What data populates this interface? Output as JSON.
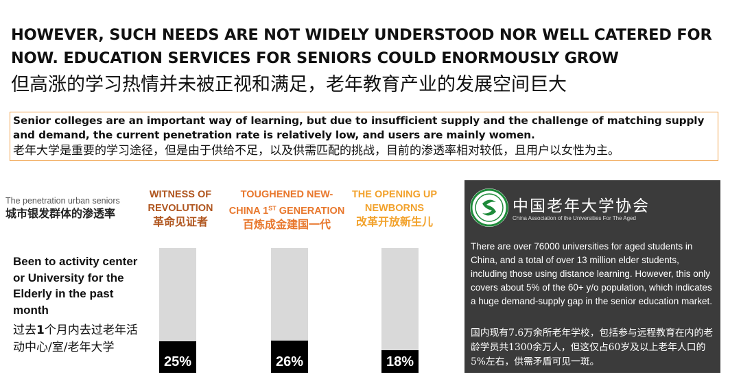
{
  "headline": {
    "en": "HOWEVER, SUCH NEEDS ARE NOT WIDELY UNDERSTOOD NOR WELL CATERED FOR NOW. EDUCATION SERVICES FOR SENIORS COULD ENORMOUSLY GROW",
    "zh": "但高涨的学习热情并未被正视和满足，老年教育产业的发展空间巨大"
  },
  "callout": {
    "en": "Senior colleges are an important way of learning, but due to insufficient supply and the challenge of matching supply and demand, the current penetration rate is relatively low, and users are mainly women.",
    "zh": "老年大学是重要的学习途径，但是由于供给不足，以及供需匹配的挑战，目前的渗透率相对较低，且用户以女性为主。"
  },
  "penetration_label": {
    "en": "The penetration urban seniors",
    "zh": "城市银发群体的渗透率"
  },
  "question_label": {
    "en": "Been to activity center or University for the Elderly in the past month",
    "zh_pre": "过去",
    "zh_num": "1",
    "zh_post": "个月内去过老年活动中心/室/老年大学"
  },
  "colors": {
    "generation_1": "#b0561f",
    "generation_2": "#e8772c",
    "generation_3": "#f2a22c",
    "callout_border": "#f0a24a",
    "bar_track": "#d9d9d9",
    "bar_fill": "#000000",
    "panel_bg": "#3b3b3b",
    "logo_green": "#1e8a3a"
  },
  "chart_data": {
    "type": "bar",
    "categories": [
      "WITNESS OF REVOLUTION 革命见证者",
      "TOUGHENED NEW-CHINA 1ST GENERATION 百炼成金建国一代",
      "THE OPENING UP NEWBORNS 改革开放新生儿"
    ],
    "values": [
      25,
      26,
      18
    ],
    "unit": "%",
    "ylim": [
      0,
      100
    ],
    "generations": [
      {
        "en_line1": "WITNESS OF",
        "en_line2": "REVOLUTION",
        "en_sup": "",
        "en_line2_tail": "",
        "zh": "革命见证者",
        "value": 25,
        "label": "25%"
      },
      {
        "en_line1": "TOUGHENED NEW-",
        "en_line2": "CHINA 1",
        "en_sup": "ST",
        "en_line2_tail": " GENERATION",
        "zh": "百炼成金建国一代",
        "value": 26,
        "label": "26%"
      },
      {
        "en_line1": "THE OPENING UP",
        "en_line2": "NEWBORNS",
        "en_sup": "",
        "en_line2_tail": "",
        "zh": "改革开放新生儿",
        "value": 18,
        "label": "18%"
      }
    ]
  },
  "panel": {
    "logo_icon": "china-association-universities-aged-logo",
    "association_zh": "中国老年大学协会",
    "association_en": "China Association of the Universities For The Aged",
    "body_en": "There are over 76000 universities for aged students in China, and a total of over 13 million elder students, including those using distance learning. However, this only covers about 5% of the 60+ y/o population, which indicates a huge demand-supply gap in the senior education market.",
    "body_zh": "国内现有7.6万余所老年学校，包括参与远程教育在内的老龄学员共1300余万人，但这仅占60岁及以上老年人口的5%左右，供需矛盾可见一斑。"
  }
}
